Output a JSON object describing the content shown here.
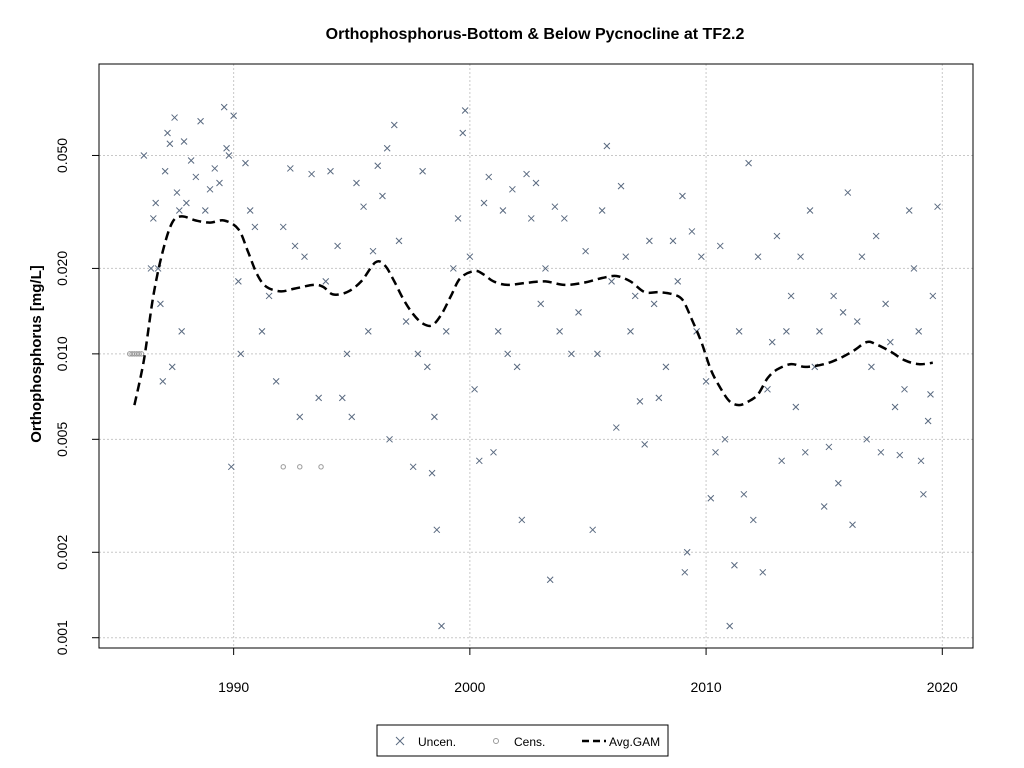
{
  "chart_data": {
    "type": "scatter",
    "title": "Orthophosphorus-Bottom & Below Pycnocline at TF2.2",
    "xlabel": "",
    "ylabel": "Orthophosphorus [mg/L]",
    "y_scale": "log",
    "xlim": [
      1984.3,
      2021.3
    ],
    "ylim": [
      0.00092,
      0.105
    ],
    "x_ticks": [
      1990,
      2000,
      2010,
      2020
    ],
    "x_tick_labels": [
      "1990",
      "2000",
      "2010",
      "2020"
    ],
    "y_ticks": [
      0.001,
      0.002,
      0.005,
      0.01,
      0.02,
      0.05
    ],
    "y_tick_labels": [
      "0.001",
      "0.002",
      "0.005",
      "0.010",
      "0.020",
      "0.050"
    ],
    "grid": true,
    "legend_position": "bottom-center",
    "legend": [
      "Uncen.",
      "Cens.",
      "Avg.GAM"
    ],
    "colors": {
      "uncensored": "#5a6a80",
      "censored": "#999999",
      "gam": "#000000",
      "grid": "#c8c8c8"
    },
    "series": [
      {
        "name": "Uncen.",
        "marker": "x",
        "points": [
          [
            1986.2,
            0.05
          ],
          [
            1986.5,
            0.02
          ],
          [
            1986.6,
            0.03
          ],
          [
            1986.7,
            0.034
          ],
          [
            1986.8,
            0.02
          ],
          [
            1986.9,
            0.015
          ],
          [
            1987.0,
            0.008
          ],
          [
            1987.1,
            0.044
          ],
          [
            1987.2,
            0.06
          ],
          [
            1987.3,
            0.055
          ],
          [
            1987.4,
            0.009
          ],
          [
            1987.5,
            0.068
          ],
          [
            1987.6,
            0.037
          ],
          [
            1987.7,
            0.032
          ],
          [
            1987.8,
            0.012
          ],
          [
            1987.9,
            0.056
          ],
          [
            1988.0,
            0.034
          ],
          [
            1988.2,
            0.048
          ],
          [
            1988.4,
            0.042
          ],
          [
            1988.6,
            0.066
          ],
          [
            1988.8,
            0.032
          ],
          [
            1989.0,
            0.038
          ],
          [
            1989.2,
            0.045
          ],
          [
            1989.4,
            0.04
          ],
          [
            1989.6,
            0.074
          ],
          [
            1989.7,
            0.053
          ],
          [
            1989.8,
            0.05
          ],
          [
            1989.9,
            0.004
          ],
          [
            1990.0,
            0.069
          ],
          [
            1990.2,
            0.018
          ],
          [
            1990.3,
            0.01
          ],
          [
            1990.5,
            0.047
          ],
          [
            1990.7,
            0.032
          ],
          [
            1990.9,
            0.028
          ],
          [
            1991.2,
            0.012
          ],
          [
            1991.5,
            0.016
          ],
          [
            1991.8,
            0.008
          ],
          [
            1992.1,
            0.028
          ],
          [
            1992.4,
            0.045
          ],
          [
            1992.6,
            0.024
          ],
          [
            1992.8,
            0.006
          ],
          [
            1993.0,
            0.022
          ],
          [
            1993.3,
            0.043
          ],
          [
            1993.6,
            0.007
          ],
          [
            1993.9,
            0.018
          ],
          [
            1994.1,
            0.044
          ],
          [
            1994.4,
            0.024
          ],
          [
            1994.6,
            0.007
          ],
          [
            1994.8,
            0.01
          ],
          [
            1995.0,
            0.006
          ],
          [
            1995.2,
            0.04
          ],
          [
            1995.5,
            0.033
          ],
          [
            1995.7,
            0.012
          ],
          [
            1995.9,
            0.023
          ],
          [
            1996.1,
            0.046
          ],
          [
            1996.3,
            0.036
          ],
          [
            1996.5,
            0.053
          ],
          [
            1996.6,
            0.005
          ],
          [
            1996.8,
            0.064
          ],
          [
            1997.0,
            0.025
          ],
          [
            1997.3,
            0.013
          ],
          [
            1997.6,
            0.004
          ],
          [
            1997.8,
            0.01
          ],
          [
            1998.0,
            0.044
          ],
          [
            1998.2,
            0.009
          ],
          [
            1998.4,
            0.0038
          ],
          [
            1998.5,
            0.006
          ],
          [
            1998.6,
            0.0024
          ],
          [
            1998.8,
            0.0011
          ],
          [
            1999.0,
            0.012
          ],
          [
            1999.3,
            0.02
          ],
          [
            1999.5,
            0.03
          ],
          [
            1999.7,
            0.06
          ],
          [
            1999.8,
            0.072
          ],
          [
            2000.0,
            0.022
          ],
          [
            2000.2,
            0.0075
          ],
          [
            2000.4,
            0.0042
          ],
          [
            2000.6,
            0.034
          ],
          [
            2000.8,
            0.042
          ],
          [
            2001.0,
            0.0045
          ],
          [
            2001.2,
            0.012
          ],
          [
            2001.4,
            0.032
          ],
          [
            2001.6,
            0.01
          ],
          [
            2001.8,
            0.038
          ],
          [
            2002.0,
            0.009
          ],
          [
            2002.2,
            0.0026
          ],
          [
            2002.4,
            0.043
          ],
          [
            2002.6,
            0.03
          ],
          [
            2002.8,
            0.04
          ],
          [
            2003.0,
            0.015
          ],
          [
            2003.2,
            0.02
          ],
          [
            2003.4,
            0.0016
          ],
          [
            2003.6,
            0.033
          ],
          [
            2003.8,
            0.012
          ],
          [
            2004.0,
            0.03
          ],
          [
            2004.3,
            0.01
          ],
          [
            2004.6,
            0.014
          ],
          [
            2004.9,
            0.023
          ],
          [
            2005.2,
            0.0024
          ],
          [
            2005.4,
            0.01
          ],
          [
            2005.6,
            0.032
          ],
          [
            2005.8,
            0.054
          ],
          [
            2006.0,
            0.018
          ],
          [
            2006.2,
            0.0055
          ],
          [
            2006.4,
            0.039
          ],
          [
            2006.6,
            0.022
          ],
          [
            2006.8,
            0.012
          ],
          [
            2007.0,
            0.016
          ],
          [
            2007.2,
            0.0068
          ],
          [
            2007.4,
            0.0048
          ],
          [
            2007.6,
            0.025
          ],
          [
            2007.8,
            0.015
          ],
          [
            2008.0,
            0.007
          ],
          [
            2008.3,
            0.009
          ],
          [
            2008.6,
            0.025
          ],
          [
            2008.8,
            0.018
          ],
          [
            2009.0,
            0.036
          ],
          [
            2009.1,
            0.0017
          ],
          [
            2009.2,
            0.002
          ],
          [
            2009.4,
            0.027
          ],
          [
            2009.6,
            0.012
          ],
          [
            2009.8,
            0.022
          ],
          [
            2010.0,
            0.008
          ],
          [
            2010.2,
            0.0031
          ],
          [
            2010.4,
            0.0045
          ],
          [
            2010.6,
            0.024
          ],
          [
            2010.8,
            0.005
          ],
          [
            2011.0,
            0.0011
          ],
          [
            2011.2,
            0.0018
          ],
          [
            2011.4,
            0.012
          ],
          [
            2011.6,
            0.0032
          ],
          [
            2011.8,
            0.047
          ],
          [
            2012.0,
            0.0026
          ],
          [
            2012.2,
            0.022
          ],
          [
            2012.4,
            0.0017
          ],
          [
            2012.6,
            0.0075
          ],
          [
            2012.8,
            0.011
          ],
          [
            2013.0,
            0.026
          ],
          [
            2013.2,
            0.0042
          ],
          [
            2013.4,
            0.012
          ],
          [
            2013.6,
            0.016
          ],
          [
            2013.8,
            0.0065
          ],
          [
            2014.0,
            0.022
          ],
          [
            2014.2,
            0.0045
          ],
          [
            2014.4,
            0.032
          ],
          [
            2014.6,
            0.009
          ],
          [
            2014.8,
            0.012
          ],
          [
            2015.0,
            0.0029
          ],
          [
            2015.2,
            0.0047
          ],
          [
            2015.4,
            0.016
          ],
          [
            2015.6,
            0.0035
          ],
          [
            2015.8,
            0.014
          ],
          [
            2016.0,
            0.037
          ],
          [
            2016.2,
            0.0025
          ],
          [
            2016.4,
            0.013
          ],
          [
            2016.6,
            0.022
          ],
          [
            2016.8,
            0.005
          ],
          [
            2017.0,
            0.009
          ],
          [
            2017.2,
            0.026
          ],
          [
            2017.4,
            0.0045
          ],
          [
            2017.6,
            0.015
          ],
          [
            2017.8,
            0.011
          ],
          [
            2018.0,
            0.0065
          ],
          [
            2018.2,
            0.0044
          ],
          [
            2018.4,
            0.0075
          ],
          [
            2018.6,
            0.032
          ],
          [
            2018.8,
            0.02
          ],
          [
            2019.0,
            0.012
          ],
          [
            2019.1,
            0.0042
          ],
          [
            2019.2,
            0.0032
          ],
          [
            2019.4,
            0.0058
          ],
          [
            2019.5,
            0.0072
          ],
          [
            2019.6,
            0.016
          ],
          [
            2019.8,
            0.033
          ]
        ]
      },
      {
        "name": "Cens.",
        "marker": "circle",
        "points": [
          [
            1985.6,
            0.01
          ],
          [
            1985.7,
            0.01
          ],
          [
            1985.8,
            0.01
          ],
          [
            1985.9,
            0.01
          ],
          [
            1986.0,
            0.01
          ],
          [
            1986.1,
            0.01
          ],
          [
            1992.1,
            0.004
          ],
          [
            1992.8,
            0.004
          ],
          [
            1993.7,
            0.004
          ]
        ]
      },
      {
        "name": "Avg.GAM",
        "line": "dashed",
        "points": [
          [
            1985.8,
            0.0066
          ],
          [
            1986.2,
            0.0095
          ],
          [
            1986.6,
            0.016
          ],
          [
            1987.0,
            0.023
          ],
          [
            1987.4,
            0.029
          ],
          [
            1987.8,
            0.0305
          ],
          [
            1988.4,
            0.0295
          ],
          [
            1989.0,
            0.029
          ],
          [
            1989.6,
            0.0295
          ],
          [
            1990.2,
            0.0275
          ],
          [
            1990.6,
            0.023
          ],
          [
            1991.0,
            0.019
          ],
          [
            1991.4,
            0.0172
          ],
          [
            1992.0,
            0.0166
          ],
          [
            1992.6,
            0.017
          ],
          [
            1993.4,
            0.0175
          ],
          [
            1993.8,
            0.0172
          ],
          [
            1994.2,
            0.0162
          ],
          [
            1994.8,
            0.0165
          ],
          [
            1995.4,
            0.018
          ],
          [
            1996.0,
            0.021
          ],
          [
            1996.4,
            0.0205
          ],
          [
            1996.8,
            0.018
          ],
          [
            1997.2,
            0.0155
          ],
          [
            1997.6,
            0.0138
          ],
          [
            1998.0,
            0.0128
          ],
          [
            1998.4,
            0.0126
          ],
          [
            1998.8,
            0.0138
          ],
          [
            1999.2,
            0.016
          ],
          [
            1999.6,
            0.0185
          ],
          [
            2000.2,
            0.0196
          ],
          [
            2000.6,
            0.019
          ],
          [
            2001.0,
            0.018
          ],
          [
            2001.6,
            0.0175
          ],
          [
            2002.4,
            0.0178
          ],
          [
            2003.2,
            0.018
          ],
          [
            2004.0,
            0.0175
          ],
          [
            2004.8,
            0.0178
          ],
          [
            2005.6,
            0.0185
          ],
          [
            2006.2,
            0.0188
          ],
          [
            2006.8,
            0.018
          ],
          [
            2007.4,
            0.0165
          ],
          [
            2008.0,
            0.0165
          ],
          [
            2008.6,
            0.0162
          ],
          [
            2009.0,
            0.0155
          ],
          [
            2009.4,
            0.0132
          ],
          [
            2009.8,
            0.011
          ],
          [
            2010.2,
            0.0088
          ],
          [
            2010.6,
            0.0076
          ],
          [
            2011.0,
            0.0068
          ],
          [
            2011.4,
            0.0066
          ],
          [
            2011.8,
            0.0068
          ],
          [
            2012.2,
            0.0072
          ],
          [
            2012.6,
            0.0082
          ],
          [
            2013.0,
            0.0088
          ],
          [
            2013.6,
            0.0092
          ],
          [
            2014.2,
            0.009
          ],
          [
            2015.0,
            0.0092
          ],
          [
            2015.6,
            0.0096
          ],
          [
            2016.2,
            0.0102
          ],
          [
            2016.8,
            0.011
          ],
          [
            2017.2,
            0.0108
          ],
          [
            2017.8,
            0.0102
          ],
          [
            2018.4,
            0.0095
          ],
          [
            2019.0,
            0.0092
          ],
          [
            2019.6,
            0.0093
          ]
        ]
      }
    ]
  }
}
